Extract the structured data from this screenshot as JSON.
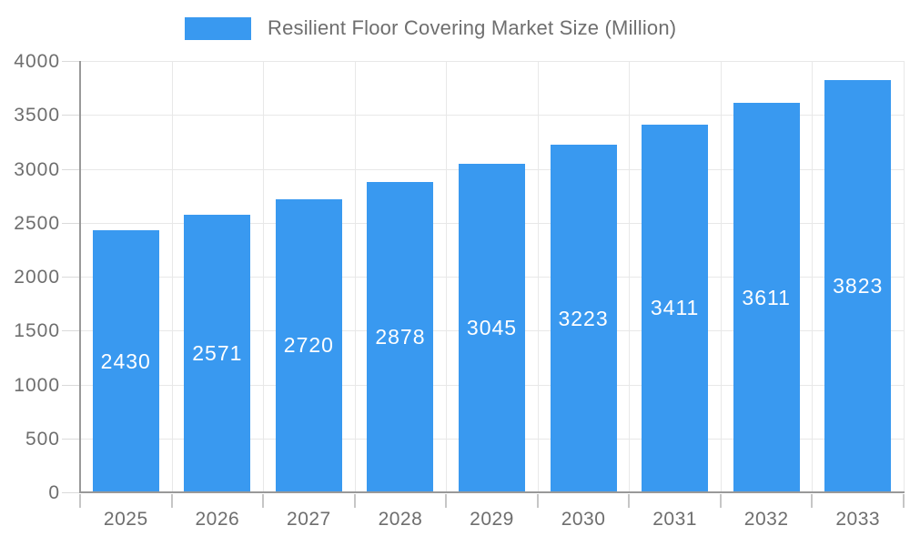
{
  "legend": {
    "label": "Resilient Floor Covering Market Size (Million)"
  },
  "chart_data": {
    "type": "bar",
    "title": "Resilient Floor Covering Market Size (Million)",
    "categories": [
      "2025",
      "2026",
      "2027",
      "2028",
      "2029",
      "2030",
      "2031",
      "2032",
      "2033"
    ],
    "values": [
      2430,
      2571,
      2720,
      2878,
      3045,
      3223,
      3411,
      3611,
      3823
    ],
    "xlabel": "",
    "ylabel": "",
    "ylim": [
      0,
      4000
    ],
    "ytick_step": 500,
    "grid": true,
    "legend_position": "top",
    "value_label_position": "inside-center"
  },
  "colors": {
    "bar": "#3999F0",
    "grid": "#E8E8E8",
    "axis": "#999999",
    "tick_y": "#DADADA",
    "tick_x": "#C6C6C6",
    "axis_text": "#6E6E6E",
    "value_text": "#FFFFFF",
    "background": "#FFFFFF"
  }
}
